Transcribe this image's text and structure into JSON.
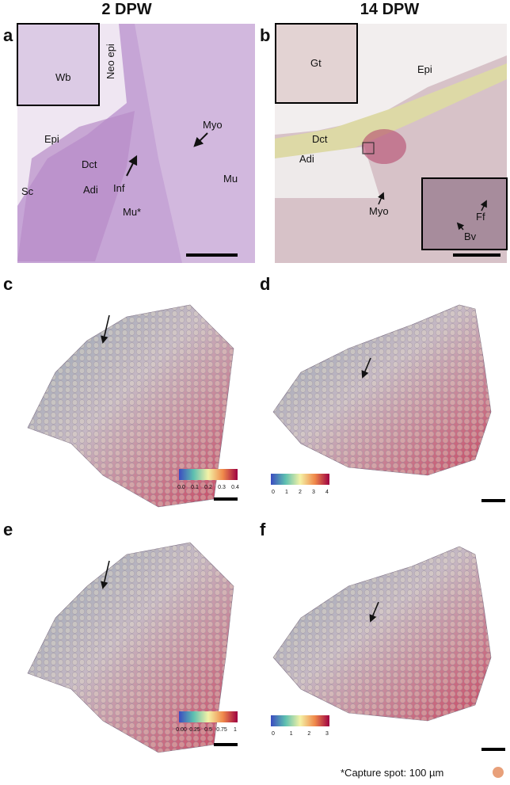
{
  "columns": [
    "2 DPW",
    "14 DPW"
  ],
  "panels": [
    {
      "label": "a",
      "annotations": [
        "Neo epi",
        "Wb",
        "Myo",
        "Epi",
        "Dct",
        "Sc",
        "Adi",
        "Inf",
        "Mu*",
        "Mu"
      ]
    },
    {
      "label": "b",
      "annotations": [
        "Gt",
        "Epi",
        "Dct",
        "Adi",
        "Myo",
        "Ff",
        "Bv"
      ]
    },
    {
      "label": "c",
      "colorbar_ticks": [
        "0.0",
        "0.1",
        "0.2",
        "0.3",
        "0.4"
      ]
    },
    {
      "label": "d",
      "colorbar_ticks": [
        "0",
        "1",
        "2",
        "3",
        "4"
      ]
    },
    {
      "label": "e",
      "colorbar_ticks": [
        "0.00",
        "0.25",
        "0.5",
        "0.75",
        "1"
      ]
    },
    {
      "label": "f",
      "colorbar_ticks": [
        "0",
        "1",
        "2",
        "3"
      ]
    }
  ],
  "footnote": "*Capture spot: 100 µm"
}
